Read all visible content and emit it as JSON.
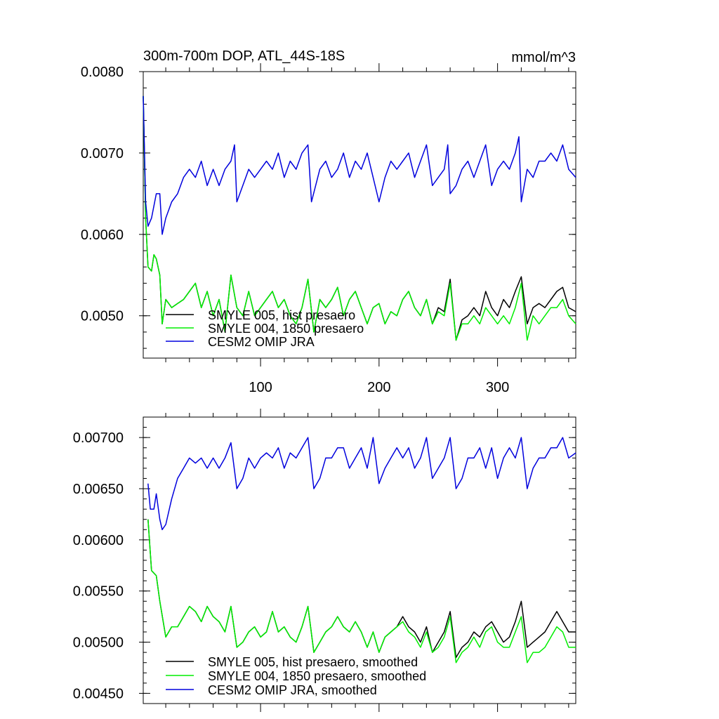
{
  "colors": {
    "smyle005": "#000000",
    "smyle004": "#00ee00",
    "omip": "#0000dd",
    "axis": "#000000",
    "background": "#ffffff"
  },
  "top": {
    "title": "300m-700m DOP, ATL_44S-18S",
    "units": "mmol/m^3"
  },
  "chart_data": [
    {
      "type": "line",
      "title": "300m-700m DOP, ATL_44S-18S",
      "units": "mmol/m^3",
      "xlim": [
        1,
        366
      ],
      "ylim": [
        0.00448,
        0.008
      ],
      "xticks": [
        100,
        200,
        300
      ],
      "xtick_labels": [
        "100",
        "200",
        "300"
      ],
      "yticks": [
        0.005,
        0.006,
        0.007,
        0.008
      ],
      "ytick_labels": [
        "0.0050",
        "0.0060",
        "0.0070",
        "0.0080"
      ],
      "grid": false,
      "legend": "bottom-left",
      "series": [
        {
          "name": "SMYLE 005, hist presaero",
          "color": "#000000",
          "x": [
            1,
            3,
            5,
            8,
            10,
            12,
            15,
            17,
            20,
            25,
            30,
            35,
            40,
            45,
            50,
            55,
            60,
            65,
            70,
            75,
            80,
            85,
            90,
            95,
            100,
            105,
            110,
            115,
            120,
            125,
            130,
            135,
            140,
            145,
            150,
            155,
            160,
            165,
            170,
            175,
            180,
            185,
            190,
            195,
            200,
            205,
            210,
            215,
            220,
            225,
            230,
            235,
            240,
            245,
            250,
            255,
            260,
            265,
            270,
            275,
            280,
            285,
            290,
            295,
            300,
            305,
            310,
            315,
            320,
            325,
            330,
            335,
            340,
            345,
            350,
            355,
            360,
            366
          ],
          "y": [
            0.0077,
            0.0062,
            0.0056,
            0.00555,
            0.00575,
            0.0057,
            0.0055,
            0.0049,
            0.0052,
            0.0051,
            0.00515,
            0.0052,
            0.0053,
            0.0054,
            0.0051,
            0.0053,
            0.005,
            0.0052,
            0.0048,
            0.0055,
            0.0051,
            0.005,
            0.0053,
            0.005,
            0.0051,
            0.0052,
            0.0053,
            0.0051,
            0.0052,
            0.005,
            0.0049,
            0.0051,
            0.00545,
            0.0048,
            0.0052,
            0.0051,
            0.0052,
            0.00535,
            0.005,
            0.0052,
            0.0053,
            0.0051,
            0.0049,
            0.0051,
            0.00515,
            0.0049,
            0.00505,
            0.005,
            0.0052,
            0.0053,
            0.0051,
            0.005,
            0.0052,
            0.0049,
            0.0051,
            0.00505,
            0.00545,
            0.0047,
            0.00495,
            0.005,
            0.0051,
            0.005,
            0.0053,
            0.0051,
            0.005,
            0.0052,
            0.0051,
            0.0053,
            0.00548,
            0.0049,
            0.0051,
            0.00515,
            0.0051,
            0.0052,
            0.0053,
            0.00535,
            0.0051,
            0.00505
          ]
        },
        {
          "name": "SMYLE 004, 1850 presaero",
          "color": "#00ee00",
          "x": [
            1,
            3,
            5,
            8,
            10,
            12,
            15,
            17,
            20,
            25,
            30,
            35,
            40,
            45,
            50,
            55,
            60,
            65,
            70,
            75,
            80,
            85,
            90,
            95,
            100,
            105,
            110,
            115,
            120,
            125,
            130,
            135,
            140,
            145,
            150,
            155,
            160,
            165,
            170,
            175,
            180,
            185,
            190,
            195,
            200,
            205,
            210,
            215,
            220,
            225,
            230,
            235,
            240,
            245,
            250,
            255,
            260,
            265,
            270,
            275,
            280,
            285,
            290,
            295,
            300,
            305,
            310,
            315,
            320,
            325,
            330,
            335,
            340,
            345,
            350,
            355,
            360,
            366
          ],
          "y": [
            0.0077,
            0.0062,
            0.0056,
            0.00555,
            0.00575,
            0.0057,
            0.0055,
            0.0049,
            0.0052,
            0.0051,
            0.00515,
            0.0052,
            0.0053,
            0.0054,
            0.0051,
            0.0053,
            0.005,
            0.0052,
            0.0048,
            0.0055,
            0.0051,
            0.005,
            0.0053,
            0.005,
            0.0051,
            0.0052,
            0.0053,
            0.0051,
            0.0052,
            0.005,
            0.0049,
            0.0051,
            0.00545,
            0.0048,
            0.0052,
            0.0051,
            0.0052,
            0.00535,
            0.005,
            0.0052,
            0.0053,
            0.0051,
            0.0049,
            0.0051,
            0.00515,
            0.0049,
            0.00505,
            0.005,
            0.0052,
            0.0053,
            0.0051,
            0.005,
            0.0052,
            0.0049,
            0.00505,
            0.005,
            0.0054,
            0.0047,
            0.0049,
            0.0049,
            0.005,
            0.0049,
            0.0051,
            0.005,
            0.0049,
            0.005,
            0.0049,
            0.0051,
            0.0054,
            0.0047,
            0.005,
            0.0049,
            0.005,
            0.0051,
            0.0051,
            0.0052,
            0.005,
            0.0049
          ]
        },
        {
          "name": "CESM2 OMIP JRA",
          "color": "#0000dd",
          "x": [
            1,
            3,
            5,
            8,
            12,
            15,
            17,
            20,
            25,
            30,
            35,
            40,
            45,
            50,
            55,
            60,
            65,
            70,
            75,
            78,
            80,
            85,
            90,
            95,
            100,
            105,
            110,
            115,
            120,
            125,
            130,
            135,
            140,
            143,
            150,
            155,
            160,
            165,
            170,
            175,
            180,
            185,
            190,
            195,
            200,
            205,
            210,
            215,
            220,
            225,
            230,
            235,
            240,
            245,
            250,
            255,
            258,
            260,
            265,
            270,
            275,
            280,
            285,
            290,
            295,
            300,
            305,
            310,
            315,
            318,
            320,
            325,
            330,
            335,
            340,
            345,
            350,
            355,
            360,
            366
          ],
          "y": [
            0.0077,
            0.0064,
            0.0061,
            0.0062,
            0.0065,
            0.0065,
            0.006,
            0.0062,
            0.0064,
            0.0065,
            0.0067,
            0.0068,
            0.0067,
            0.0069,
            0.0066,
            0.0068,
            0.0066,
            0.0068,
            0.0069,
            0.0071,
            0.0064,
            0.0066,
            0.0068,
            0.0067,
            0.0068,
            0.0069,
            0.0068,
            0.007,
            0.0067,
            0.0069,
            0.0068,
            0.007,
            0.0071,
            0.0064,
            0.0068,
            0.0069,
            0.0067,
            0.0068,
            0.007,
            0.0067,
            0.0069,
            0.0068,
            0.007,
            0.0067,
            0.0064,
            0.0067,
            0.0069,
            0.0068,
            0.0069,
            0.007,
            0.0067,
            0.0069,
            0.0071,
            0.0066,
            0.0067,
            0.0068,
            0.0071,
            0.0065,
            0.0066,
            0.0068,
            0.0069,
            0.0067,
            0.0069,
            0.0071,
            0.0066,
            0.0068,
            0.0069,
            0.0068,
            0.007,
            0.0072,
            0.0064,
            0.0068,
            0.0067,
            0.0069,
            0.0069,
            0.007,
            0.0069,
            0.0071,
            0.0068,
            0.0067
          ]
        }
      ]
    },
    {
      "type": "line",
      "xlim": [
        1,
        366
      ],
      "ylim": [
        0.0044,
        0.0072
      ],
      "xticks": [
        100,
        200,
        300
      ],
      "yticks": [
        0.0045,
        0.005,
        0.0055,
        0.006,
        0.0065,
        0.007
      ],
      "ytick_labels": [
        "0.00450",
        "0.00500",
        "0.00550",
        "0.00600",
        "0.00650",
        "0.00700"
      ],
      "grid": false,
      "legend": "bottom-left",
      "series": [
        {
          "name": "SMYLE 005, hist presaero, smoothed",
          "color": "#000000",
          "x": [
            5,
            8,
            12,
            15,
            20,
            25,
            30,
            35,
            40,
            45,
            50,
            55,
            60,
            65,
            70,
            75,
            80,
            85,
            90,
            95,
            100,
            105,
            110,
            115,
            120,
            125,
            130,
            135,
            140,
            145,
            150,
            155,
            160,
            165,
            170,
            175,
            180,
            185,
            190,
            195,
            200,
            205,
            210,
            215,
            220,
            225,
            230,
            235,
            240,
            245,
            250,
            255,
            260,
            265,
            270,
            275,
            280,
            285,
            290,
            295,
            300,
            305,
            310,
            315,
            320,
            325,
            330,
            335,
            340,
            345,
            350,
            355,
            360,
            366
          ],
          "y": [
            0.0062,
            0.0057,
            0.00565,
            0.0054,
            0.00505,
            0.00515,
            0.00515,
            0.00525,
            0.00535,
            0.0053,
            0.0052,
            0.00535,
            0.00525,
            0.0052,
            0.0051,
            0.00535,
            0.00495,
            0.005,
            0.0051,
            0.00515,
            0.00505,
            0.0051,
            0.0053,
            0.0051,
            0.00515,
            0.00505,
            0.005,
            0.00515,
            0.00535,
            0.0049,
            0.005,
            0.0051,
            0.00515,
            0.00525,
            0.00515,
            0.0051,
            0.0052,
            0.0051,
            0.00495,
            0.0051,
            0.0049,
            0.00505,
            0.0051,
            0.00515,
            0.00525,
            0.00515,
            0.0051,
            0.005,
            0.00515,
            0.0049,
            0.005,
            0.0051,
            0.0053,
            0.00485,
            0.00495,
            0.005,
            0.0051,
            0.00505,
            0.00515,
            0.0052,
            0.0051,
            0.005,
            0.00505,
            0.0052,
            0.0054,
            0.00495,
            0.005,
            0.00505,
            0.0051,
            0.0052,
            0.0053,
            0.0052,
            0.0051,
            0.0051
          ]
        },
        {
          "name": "SMYLE 004, 1850 presaero, smoothed",
          "color": "#00ee00",
          "x": [
            5,
            8,
            12,
            15,
            20,
            25,
            30,
            35,
            40,
            45,
            50,
            55,
            60,
            65,
            70,
            75,
            80,
            85,
            90,
            95,
            100,
            105,
            110,
            115,
            120,
            125,
            130,
            135,
            140,
            145,
            150,
            155,
            160,
            165,
            170,
            175,
            180,
            185,
            190,
            195,
            200,
            205,
            210,
            215,
            220,
            225,
            230,
            235,
            240,
            245,
            250,
            255,
            260,
            265,
            270,
            275,
            280,
            285,
            290,
            295,
            300,
            305,
            310,
            315,
            320,
            325,
            330,
            335,
            340,
            345,
            350,
            355,
            360,
            366
          ],
          "y": [
            0.0062,
            0.0057,
            0.00565,
            0.0054,
            0.00505,
            0.00515,
            0.00515,
            0.00525,
            0.00535,
            0.0053,
            0.0052,
            0.00535,
            0.00525,
            0.0052,
            0.0051,
            0.00535,
            0.00495,
            0.005,
            0.0051,
            0.00515,
            0.00505,
            0.0051,
            0.0053,
            0.0051,
            0.00515,
            0.00505,
            0.005,
            0.00515,
            0.00535,
            0.0049,
            0.005,
            0.0051,
            0.00515,
            0.00525,
            0.00515,
            0.0051,
            0.0052,
            0.0051,
            0.00495,
            0.0051,
            0.0049,
            0.00505,
            0.0051,
            0.00515,
            0.0052,
            0.0051,
            0.00505,
            0.00495,
            0.0051,
            0.0049,
            0.00495,
            0.00505,
            0.00525,
            0.0048,
            0.0049,
            0.00495,
            0.00505,
            0.00495,
            0.0051,
            0.00515,
            0.005,
            0.00495,
            0.00495,
            0.0051,
            0.00525,
            0.0048,
            0.0049,
            0.0049,
            0.00495,
            0.00505,
            0.00515,
            0.0051,
            0.00495,
            0.00495
          ]
        },
        {
          "name": "CESM2 OMIP JRA, smoothed",
          "color": "#0000dd",
          "x": [
            5,
            7,
            10,
            12,
            15,
            17,
            20,
            25,
            30,
            35,
            40,
            45,
            50,
            55,
            60,
            65,
            70,
            75,
            80,
            85,
            90,
            95,
            100,
            105,
            110,
            115,
            120,
            125,
            130,
            135,
            140,
            145,
            150,
            155,
            160,
            165,
            170,
            175,
            180,
            185,
            190,
            195,
            200,
            205,
            210,
            215,
            220,
            225,
            230,
            235,
            240,
            245,
            250,
            255,
            260,
            265,
            270,
            275,
            280,
            285,
            290,
            295,
            300,
            305,
            310,
            315,
            320,
            325,
            330,
            335,
            340,
            345,
            350,
            355,
            360,
            366
          ],
          "y": [
            0.00655,
            0.0063,
            0.0063,
            0.00645,
            0.0062,
            0.0061,
            0.00615,
            0.0064,
            0.0066,
            0.0067,
            0.0068,
            0.00675,
            0.0068,
            0.0067,
            0.0068,
            0.0067,
            0.0068,
            0.00695,
            0.0065,
            0.0066,
            0.0068,
            0.0067,
            0.0068,
            0.00685,
            0.0068,
            0.0069,
            0.0067,
            0.00685,
            0.0068,
            0.0069,
            0.007,
            0.0065,
            0.0066,
            0.0068,
            0.0068,
            0.0069,
            0.0069,
            0.0067,
            0.0068,
            0.0069,
            0.0067,
            0.007,
            0.00655,
            0.0067,
            0.0068,
            0.0069,
            0.0068,
            0.0069,
            0.0067,
            0.0068,
            0.007,
            0.0066,
            0.0067,
            0.0068,
            0.007,
            0.0065,
            0.0066,
            0.0068,
            0.0068,
            0.0069,
            0.0067,
            0.0069,
            0.0066,
            0.0068,
            0.0069,
            0.0068,
            0.007,
            0.0065,
            0.0067,
            0.0068,
            0.0068,
            0.0069,
            0.0069,
            0.007,
            0.0068,
            0.00685
          ]
        }
      ]
    }
  ]
}
